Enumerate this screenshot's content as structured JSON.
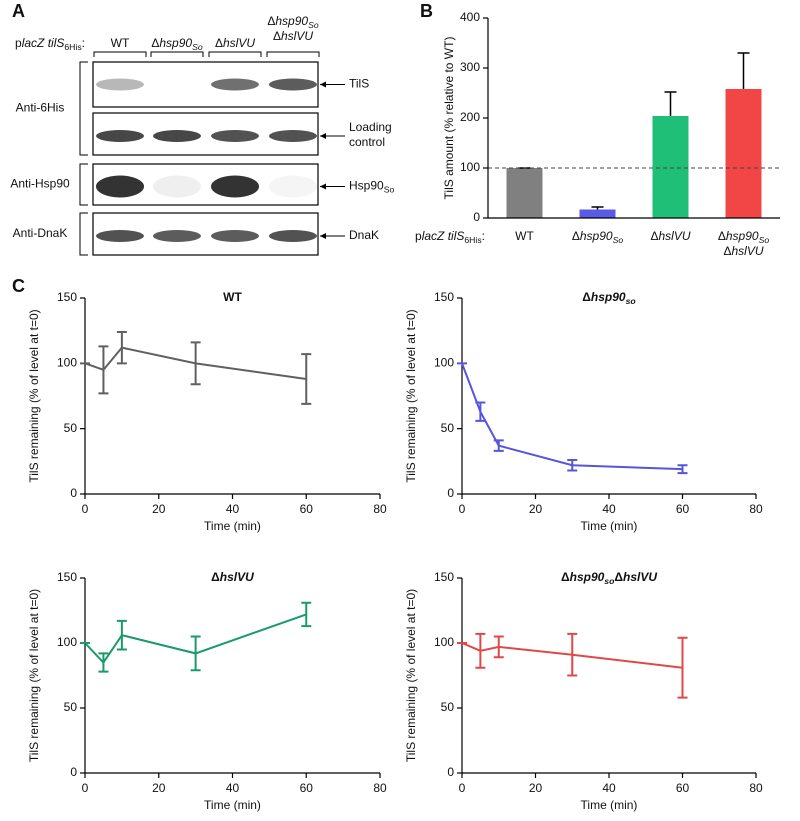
{
  "panels": {
    "a": "A",
    "b": "B",
    "c": "C"
  },
  "blot": {
    "prefix": [
      {
        "text": "p"
      },
      {
        "text": "lacZ tilS",
        "style": "italic"
      },
      {
        "text": "6His",
        "style": "sub"
      },
      {
        "text": ":"
      }
    ],
    "lanes": [
      "WT",
      [
        {
          "text": "Δ"
        },
        {
          "text": "hsp90",
          "style": "italic"
        },
        {
          "text": "So",
          "style": "italic-sub"
        }
      ],
      [
        {
          "text": "Δ"
        },
        {
          "text": "hslVU",
          "style": "italic"
        }
      ],
      [
        [
          {
            "text": "Δ"
          },
          {
            "text": "hsp90",
            "style": "italic"
          },
          {
            "text": "So",
            "style": "italic-sub"
          }
        ],
        [
          {
            "text": "Δ"
          },
          {
            "text": "hslVU",
            "style": "italic"
          }
        ]
      ]
    ],
    "antibodies": [
      "Anti-6His",
      "Anti-Hsp90",
      "Anti-DnaK"
    ],
    "bands": [
      "TilS",
      [
        [
          {
            "text": "Loading"
          }
        ],
        [
          {
            "text": "control"
          }
        ]
      ],
      [
        {
          "text": "Hsp90"
        },
        {
          "text": "So",
          "style": "sub"
        }
      ],
      "DnaK"
    ]
  },
  "chart_data": [
    {
      "type": "bar",
      "ylabel": "TilS amount (% relative to WT)",
      "categories": [
        "WT",
        [
          {
            "text": "Δ"
          },
          {
            "text": "hsp90",
            "style": "italic"
          },
          {
            "text": "So",
            "style": "italic-sub"
          }
        ],
        [
          {
            "text": "Δ"
          },
          {
            "text": "hslVU",
            "style": "italic"
          }
        ],
        [
          [
            {
              "text": "Δ"
            },
            {
              "text": "hsp90",
              "style": "italic"
            },
            {
              "text": "So",
              "style": "italic-sub"
            }
          ],
          [
            {
              "text": "Δ"
            },
            {
              "text": "hslVU",
              "style": "italic"
            }
          ]
        ]
      ],
      "values": [
        100,
        17,
        204,
        258
      ],
      "errors": [
        0,
        5,
        48,
        72
      ],
      "colors": [
        "#808080",
        "#5a5ae8",
        "#1fbf78",
        "#f24545"
      ],
      "ylim": [
        0,
        400
      ],
      "yticks": [
        0,
        100,
        200,
        300,
        400
      ],
      "reference_line": 100
    },
    {
      "type": "line",
      "title": "WT",
      "xlabel": "Time (min)",
      "ylabel": "TilS remaining (% of level at t=0)",
      "x": [
        0,
        5,
        10,
        30,
        60
      ],
      "values": [
        100,
        95,
        112,
        100,
        88
      ],
      "errors": [
        0,
        18,
        12,
        16,
        19
      ],
      "color": "#606060",
      "xlim": [
        0,
        80
      ],
      "xticks": [
        0,
        20,
        40,
        60,
        80
      ],
      "ylim": [
        0,
        150
      ],
      "yticks": [
        0,
        50,
        100,
        150
      ]
    },
    {
      "type": "line",
      "title": [
        {
          "text": "Δ"
        },
        {
          "text": "hsp90",
          "style": "italic"
        },
        {
          "text": "so",
          "style": "italic-sub"
        }
      ],
      "xlabel": "Time (min)",
      "ylabel": "TilS remaining (% of level at t=0)",
      "x": [
        0,
        5,
        10,
        30,
        60
      ],
      "values": [
        100,
        63,
        37,
        22,
        19
      ],
      "errors": [
        0,
        7,
        4,
        4,
        3
      ],
      "color": "#5555dd",
      "xlim": [
        0,
        80
      ],
      "xticks": [
        0,
        20,
        40,
        60,
        80
      ],
      "ylim": [
        0,
        150
      ],
      "yticks": [
        0,
        50,
        100,
        150
      ]
    },
    {
      "type": "line",
      "title": [
        {
          "text": "Δ"
        },
        {
          "text": "hslVU",
          "style": "italic"
        }
      ],
      "xlabel": "Time (min)",
      "ylabel": "TilS remaining (% of level at t=0)",
      "x": [
        0,
        5,
        10,
        30,
        60
      ],
      "values": [
        100,
        85,
        106,
        92,
        122
      ],
      "errors": [
        0,
        7,
        11,
        13,
        9
      ],
      "color": "#1a9a6a",
      "xlim": [
        0,
        80
      ],
      "xticks": [
        0,
        20,
        40,
        60,
        80
      ],
      "ylim": [
        0,
        150
      ],
      "yticks": [
        0,
        50,
        100,
        150
      ]
    },
    {
      "type": "line",
      "title": [
        {
          "text": "Δ"
        },
        {
          "text": "hsp90",
          "style": "italic"
        },
        {
          "text": "so",
          "style": "italic-sub"
        },
        {
          "text": "Δ"
        },
        {
          "text": "hslVU",
          "style": "italic"
        }
      ],
      "xlabel": "Time (min)",
      "ylabel": "TilS remaining (% of level at t=0)",
      "x": [
        0,
        5,
        10,
        30,
        60
      ],
      "values": [
        100,
        94,
        97,
        91,
        81
      ],
      "errors": [
        0,
        13,
        8,
        16,
        23
      ],
      "color": "#e04848",
      "xlim": [
        0,
        80
      ],
      "xticks": [
        0,
        20,
        40,
        60,
        80
      ],
      "ylim": [
        0,
        150
      ],
      "yticks": [
        0,
        50,
        100,
        150
      ]
    }
  ]
}
